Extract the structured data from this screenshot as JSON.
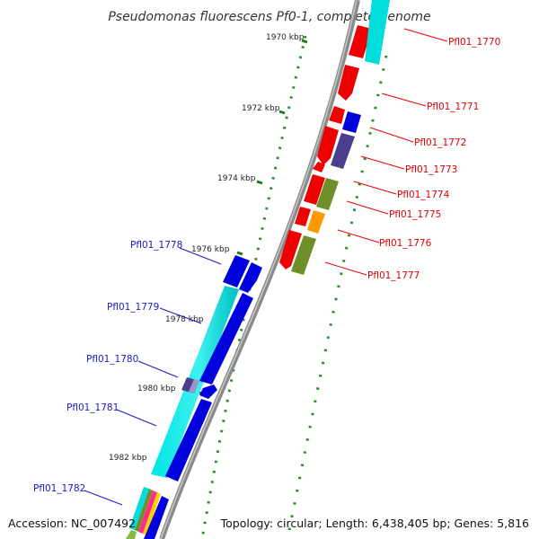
{
  "title": "Pseudomonas fluorescens Pf0-1, complete genome",
  "footer": {
    "accession": "Accession: NC_007492",
    "summary": "Topology: circular; Length: 6,438,405 bp; Genes: 5,816"
  },
  "colors": {
    "backbone": "#8a8a8a",
    "ticks": "#2e8b2e",
    "cds_red": "#ee0000",
    "cds_blue": "#0000dd",
    "cyan": "#00dddd",
    "purple": "#4a3f8f",
    "olive": "#6f8f2a",
    "orange": "#ff9900",
    "label_red": "#dd0000",
    "label_blue": "#1a1acc"
  },
  "kbp_labels": [
    "1970 kbp",
    "1972 kbp",
    "1974 kbp",
    "1976 kbp",
    "1978 kbp",
    "1980 kbp",
    "1982 kbp"
  ],
  "gene_labels_right": [
    "Pfl01_1770",
    "Pfl01_1771",
    "Pfl01_1772",
    "Pfl01_1773",
    "Pfl01_1774",
    "Pfl01_1775",
    "Pfl01_1776",
    "Pfl01_1777"
  ],
  "gene_labels_left": [
    "Pfl01_1778",
    "Pfl01_1779",
    "Pfl01_1780",
    "Pfl01_1781",
    "Pfl01_1782"
  ]
}
